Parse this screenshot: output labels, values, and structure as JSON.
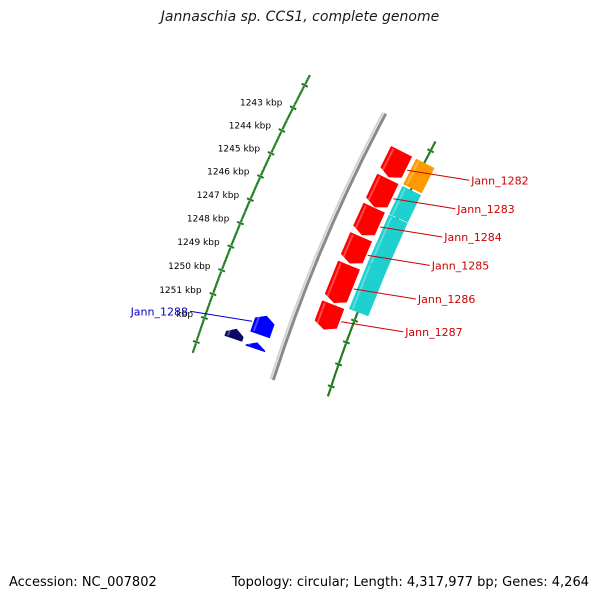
{
  "title": "Jannaschia sp. CCS1, complete genome",
  "footer": {
    "accession": "Accession: NC_007802",
    "info": "Topology: circular; Length: 4,317,977 bp; Genes: 4,264"
  },
  "colors": {
    "backbone": "#8a8a8a",
    "tick": "#1f7a1f",
    "forward_cds": "#ff0000",
    "orange_feature": "#ff9900",
    "cyan_feature": "#1fd0d0",
    "reverse_cds": "#0000ff",
    "reverse_dark": "#0a0a66",
    "label_red": "#cc0000",
    "label_blue": "#0000cc"
  },
  "scale": {
    "unit": "kbp",
    "ticks": [
      {
        "label": "1243 kbp",
        "value": 1243
      },
      {
        "label": "1244 kbp",
        "value": 1244
      },
      {
        "label": "1245 kbp",
        "value": 1245
      },
      {
        "label": "1246 kbp",
        "value": 1246
      },
      {
        "label": "1247 kbp",
        "value": 1247
      },
      {
        "label": "1248 kbp",
        "value": 1248
      },
      {
        "label": "1249 kbp",
        "value": 1249
      },
      {
        "label": "1250 kbp",
        "value": 1250
      },
      {
        "label": "1251 kbp",
        "value": 1251
      },
      {
        "label": "kbp",
        "value": 1252
      }
    ]
  },
  "features": [
    {
      "name": "Jann_1282",
      "start": 1242.6,
      "end": 1243.8,
      "track": "forward",
      "kind": "cds",
      "labeled": true
    },
    {
      "name": "",
      "start": 1242.6,
      "end": 1243.8,
      "track": "forward_outer",
      "kind": "orange",
      "labeled": false
    },
    {
      "name": "Jann_1283",
      "start": 1243.9,
      "end": 1245.2,
      "track": "forward",
      "kind": "cds",
      "labeled": true
    },
    {
      "name": "",
      "start": 1243.9,
      "end": 1245.2,
      "track": "forward_outer",
      "kind": "cyan",
      "labeled": false
    },
    {
      "name": "Jann_1284",
      "start": 1245.25,
      "end": 1246.5,
      "track": "forward",
      "kind": "cds",
      "labeled": true
    },
    {
      "name": "",
      "start": 1245.25,
      "end": 1247.5,
      "track": "forward_outer",
      "kind": "cyan",
      "labeled": false
    },
    {
      "name": "Jann_1285",
      "start": 1246.6,
      "end": 1247.8,
      "track": "forward",
      "kind": "cds",
      "labeled": true
    },
    {
      "name": "",
      "start": 1247.5,
      "end": 1249.6,
      "track": "forward_outer",
      "kind": "cyan",
      "labeled": false
    },
    {
      "name": "Jann_1286",
      "start": 1247.9,
      "end": 1249.6,
      "track": "forward",
      "kind": "cds",
      "labeled": true
    },
    {
      "name": "Jann_1287",
      "start": 1249.7,
      "end": 1250.8,
      "track": "forward",
      "kind": "cds",
      "labeled": true
    },
    {
      "name": "Jann_1288",
      "start": 1251.1,
      "end": 1251.9,
      "track": "reverse",
      "kind": "rcds",
      "labeled": true
    },
    {
      "name": "",
      "start": 1252.0,
      "end": 1252.4,
      "track": "reverse_far",
      "kind": "rdark",
      "labeled": false
    },
    {
      "name": "",
      "start": 1252.25,
      "end": 1252.5,
      "track": "reverse",
      "kind": "rcds",
      "labeled": false
    }
  ]
}
